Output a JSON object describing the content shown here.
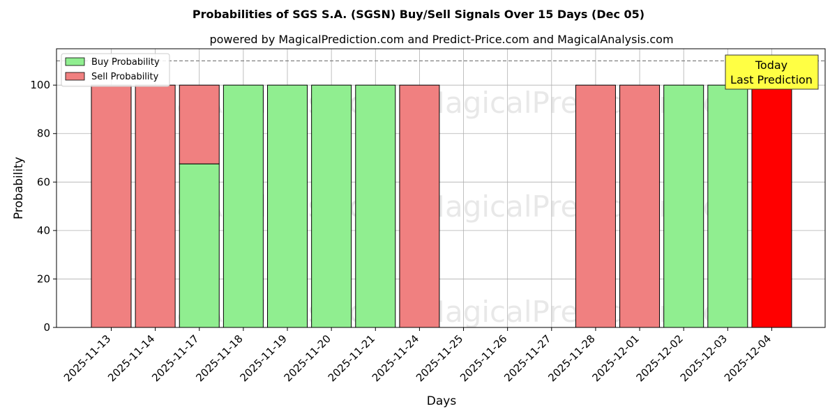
{
  "chart_data": {
    "type": "bar",
    "stacked": true,
    "title": "Probabilities of SGS S.A. (SGSN) Buy/Sell Signals Over 15 Days (Dec 05)",
    "subtitle": "powered by MagicalPrediction.com and Predict-Price.com and MagicalAnalysis.com",
    "xlabel": "Days",
    "ylabel": "Probability",
    "ylim": [
      0,
      115
    ],
    "yticks": [
      0,
      20,
      40,
      60,
      80,
      100
    ],
    "grid": true,
    "legend_position": "top-left",
    "reference_line": 110,
    "categories": [
      "2025-11-13",
      "2025-11-14",
      "2025-11-17",
      "2025-11-18",
      "2025-11-19",
      "2025-11-20",
      "2025-11-21",
      "2025-11-24",
      "2025-11-25",
      "2025-11-26",
      "2025-11-27",
      "2025-11-28",
      "2025-12-01",
      "2025-12-02",
      "2025-12-03",
      "2025-12-04"
    ],
    "series": [
      {
        "name": "Buy Probability",
        "color": "#90ee90",
        "values": [
          0,
          0,
          67.5,
          100,
          100,
          100,
          100,
          0,
          0,
          0,
          0,
          0,
          0,
          100,
          100,
          0
        ]
      },
      {
        "name": "Sell Probability",
        "color": "#f08080",
        "values": [
          100,
          100,
          32.5,
          0,
          0,
          0,
          0,
          100,
          0,
          0,
          0,
          100,
          100,
          0,
          0,
          100
        ]
      }
    ],
    "highlight": {
      "index": 15,
      "color": "#ff0000"
    },
    "annotation": {
      "line1": "Today",
      "line2": "Last Prediction",
      "color": "#ffff44"
    },
    "watermarks": [
      "MagicalAnalysis.com",
      "MagicalPrediction.com"
    ]
  }
}
